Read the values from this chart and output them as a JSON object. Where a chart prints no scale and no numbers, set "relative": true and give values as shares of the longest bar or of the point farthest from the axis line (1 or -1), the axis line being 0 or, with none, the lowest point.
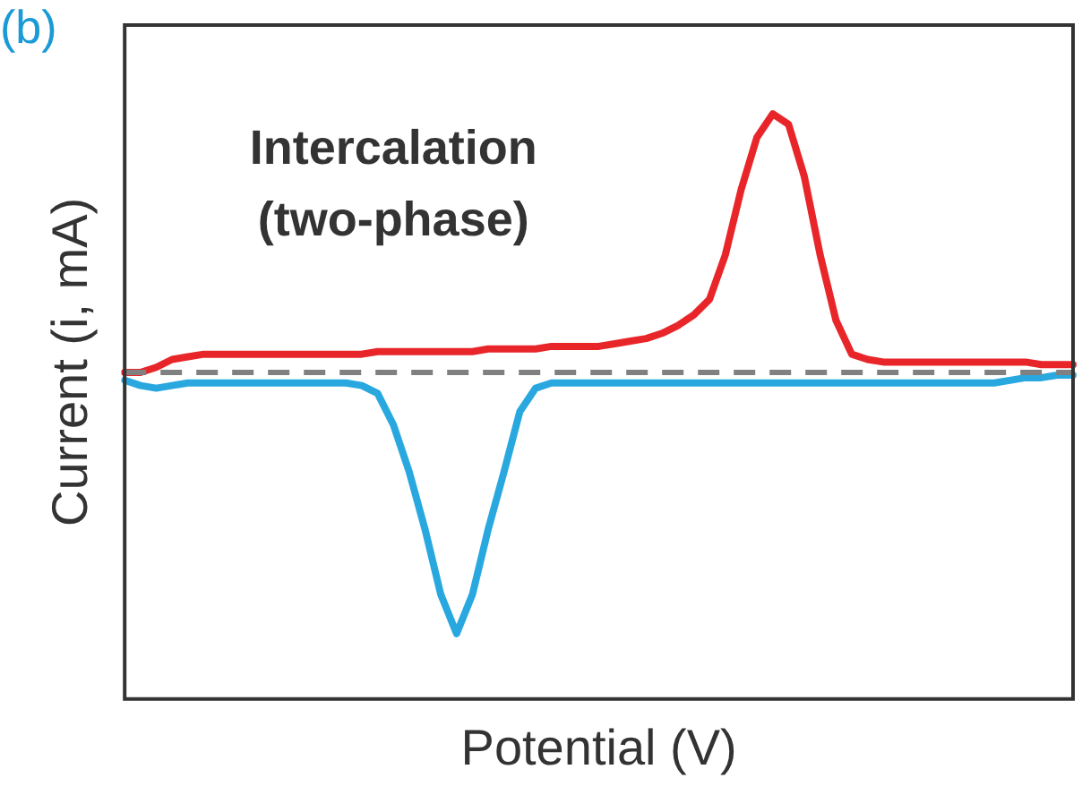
{
  "chart_data": {
    "type": "line",
    "title": "(b)",
    "xlabel": "Potential (V)",
    "ylabel": "Current (i, mA)",
    "relative": true,
    "legend": false,
    "grid": false,
    "marker": "none",
    "line_style": "solid",
    "categories": [
      null,
      null,
      null,
      null,
      null,
      null,
      null,
      null,
      null,
      null,
      null,
      null,
      null,
      null,
      null,
      null,
      null,
      null,
      null,
      null,
      null,
      null,
      null,
      null,
      null,
      null,
      null,
      null,
      null,
      null,
      null,
      null,
      null,
      null,
      null,
      null,
      null,
      null,
      null,
      null,
      null,
      null,
      null,
      null,
      null,
      null,
      null,
      null,
      null,
      null,
      null,
      null,
      null,
      null,
      null,
      null,
      null,
      null,
      null,
      null,
      null
    ],
    "series": [
      {
        "color": "#e8262a",
        "values": [
          0,
          0,
          0.02,
          0.05,
          0.06,
          0.07,
          0.07,
          0.07,
          0.07,
          0.07,
          0.07,
          0.07,
          0.07,
          0.07,
          0.07,
          0.07,
          0.08,
          0.08,
          0.08,
          0.08,
          0.08,
          0.08,
          0.08,
          0.09,
          0.09,
          0.09,
          0.09,
          0.1,
          0.1,
          0.1,
          0.1,
          0.11,
          0.12,
          0.13,
          0.15,
          0.18,
          0.22,
          0.28,
          0.45,
          0.7,
          0.9,
          0.99,
          0.95,
          0.75,
          0.45,
          0.2,
          0.07,
          0.05,
          0.04,
          0.04,
          0.04,
          0.04,
          0.04,
          0.04,
          0.04,
          0.04,
          0.04,
          0.04,
          0.03,
          0.03,
          0.03
        ]
      },
      {
        "color": "#29a8e0",
        "values": [
          -0.03,
          -0.05,
          -0.06,
          -0.05,
          -0.04,
          -0.04,
          -0.04,
          -0.04,
          -0.04,
          -0.04,
          -0.04,
          -0.04,
          -0.04,
          -0.04,
          -0.04,
          -0.05,
          -0.08,
          -0.2,
          -0.38,
          -0.6,
          -0.85,
          -1,
          -0.85,
          -0.6,
          -0.38,
          -0.15,
          -0.06,
          -0.04,
          -0.04,
          -0.04,
          -0.04,
          -0.04,
          -0.04,
          -0.04,
          -0.04,
          -0.04,
          -0.04,
          -0.04,
          -0.04,
          -0.04,
          -0.04,
          -0.04,
          -0.04,
          -0.04,
          -0.04,
          -0.04,
          -0.04,
          -0.04,
          -0.04,
          -0.04,
          -0.04,
          -0.04,
          -0.04,
          -0.04,
          -0.04,
          -0.04,
          -0.03,
          -0.02,
          -0.02,
          -0.01,
          -0.01
        ]
      }
    ],
    "ref_lines": [
      {
        "axis": "y",
        "value": 0,
        "color": "#808080",
        "line_style": "dashed"
      }
    ],
    "annotations": [
      "Intercalation\n(two-phase)"
    ]
  }
}
